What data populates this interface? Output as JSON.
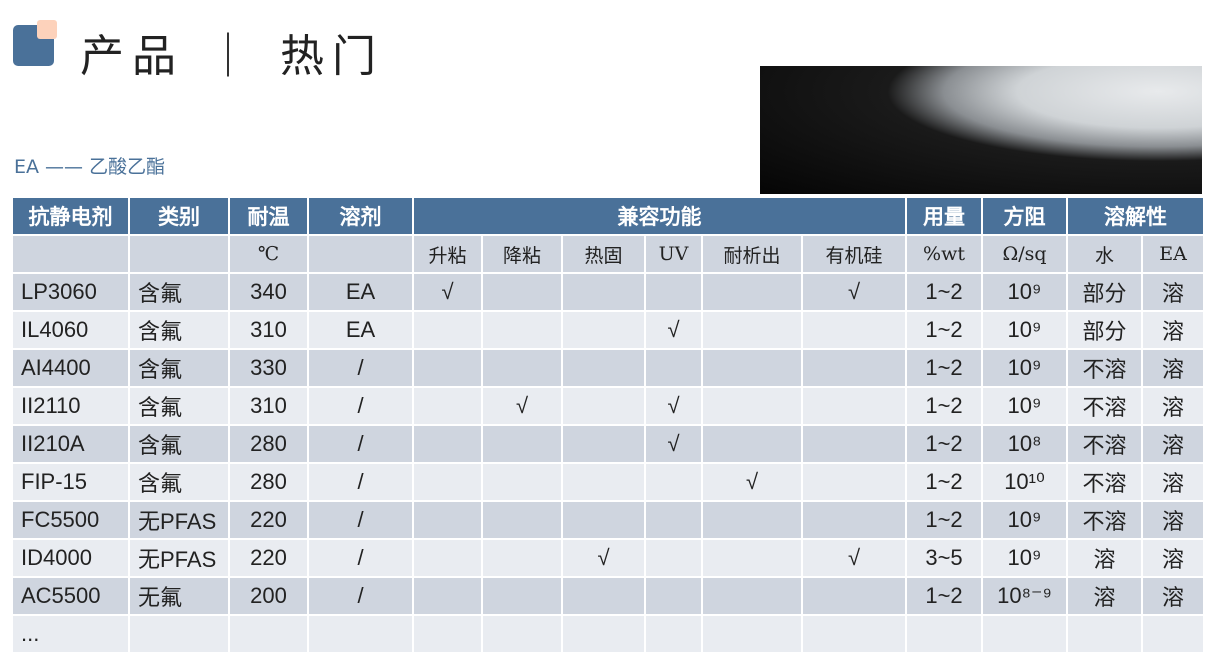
{
  "title": "产品 ｜ 热门",
  "subtitle": "EA —— 乙酸乙酯",
  "header": [
    "抗静电剂",
    "类别",
    "耐温",
    "溶剂",
    "兼容功能",
    "用量",
    "方阻",
    "溶解性"
  ],
  "subheader": [
    "",
    "",
    "℃",
    "",
    "升粘",
    "降粘",
    "热固",
    "UV",
    "耐析出",
    "有机硅",
    "%wt",
    "Ω/sq",
    "水",
    "EA"
  ],
  "rows": [
    [
      "LP3060",
      "含氟",
      "340",
      "EA",
      "√",
      "",
      "",
      "",
      "",
      "√",
      "1~2",
      "10⁹",
      "部分",
      "溶"
    ],
    [
      "IL4060",
      "含氟",
      "310",
      "EA",
      "",
      "",
      "",
      "√",
      "",
      "",
      "1~2",
      "10⁹",
      "部分",
      "溶"
    ],
    [
      "AI4400",
      "含氟",
      "330",
      "/",
      "",
      "",
      "",
      "",
      "",
      "",
      "1~2",
      "10⁹",
      "不溶",
      "溶"
    ],
    [
      "II2110",
      "含氟",
      "310",
      "/",
      "",
      "√",
      "",
      "√",
      "",
      "",
      "1~2",
      "10⁹",
      "不溶",
      "溶"
    ],
    [
      "II210A",
      "含氟",
      "280",
      "/",
      "",
      "",
      "",
      "√",
      "",
      "",
      "1~2",
      "10⁸",
      "不溶",
      "溶"
    ],
    [
      "FIP-15",
      "含氟",
      "280",
      "/",
      "",
      "",
      "",
      "",
      "√",
      "",
      "1~2",
      "10¹⁰",
      "不溶",
      "溶"
    ],
    [
      "FC5500",
      "无PFAS",
      "220",
      "/",
      "",
      "",
      "",
      "",
      "",
      "",
      "1~2",
      "10⁹",
      "不溶",
      "溶"
    ],
    [
      "ID4000",
      "无PFAS",
      "220",
      "/",
      "",
      "",
      "√",
      "",
      "",
      "√",
      "3~5",
      "10⁹",
      "溶",
      "溶"
    ],
    [
      "AC5500",
      "无氟",
      "200",
      "/",
      "",
      "",
      "",
      "",
      "",
      "",
      "1~2",
      "10⁸⁻⁹",
      "溶",
      "溶"
    ],
    [
      "...",
      "",
      "",
      "",
      "",
      "",
      "",
      "",
      "",
      "",
      "",
      "",
      "",
      ""
    ]
  ],
  "colors": {
    "header": "#4a7199",
    "row_light": "#e9ecf1",
    "row_dark": "#cfd5df",
    "accent": "#fdd2bb"
  }
}
